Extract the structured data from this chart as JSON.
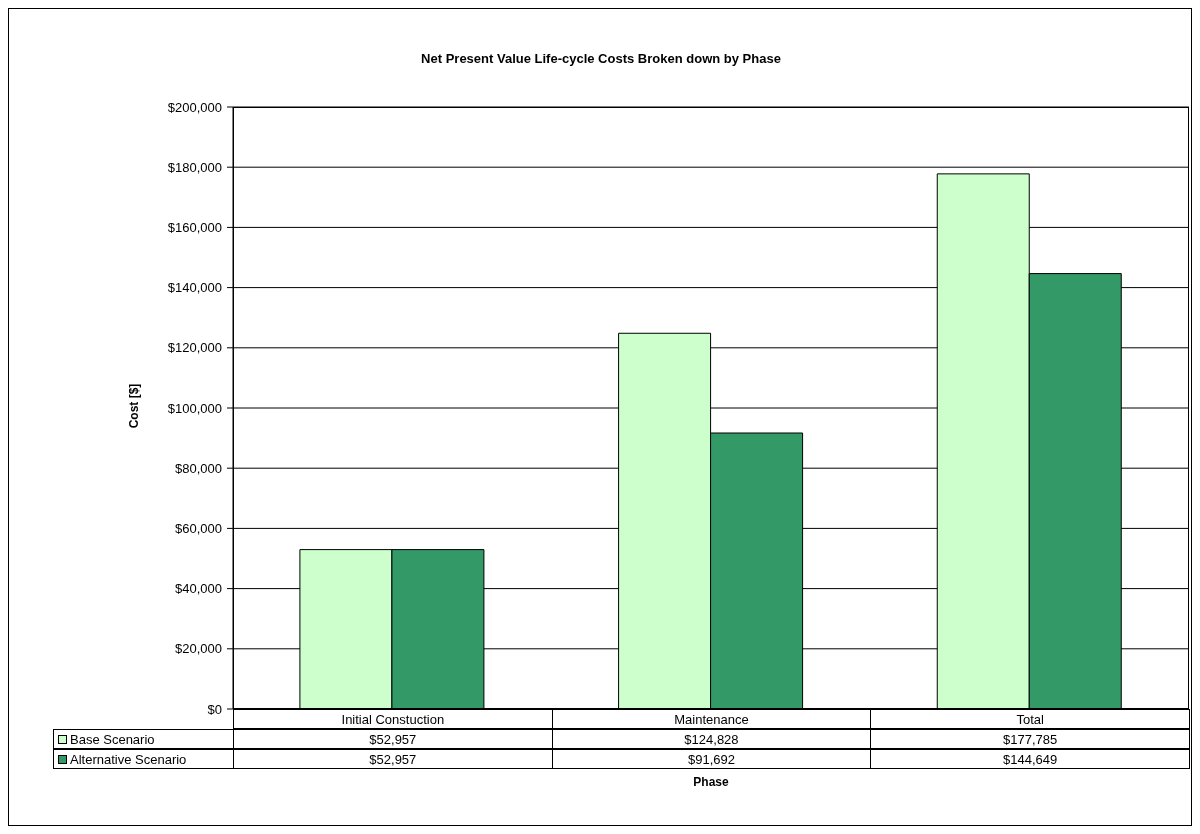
{
  "chart_data": {
    "type": "bar",
    "title": "Net Present Value Life-cycle Costs Broken down by Phase",
    "xlabel": "Phase",
    "ylabel": "Cost [$]",
    "categories": [
      "Initial Constuction",
      "Maintenance",
      "Total"
    ],
    "series": [
      {
        "name": "Base Scenario",
        "color": "#ccffcc",
        "values": [
          52957,
          124828,
          177785
        ],
        "value_labels": [
          "$52,957",
          "$124,828",
          "$177,785"
        ]
      },
      {
        "name": "Alternative Scenario",
        "color": "#339966",
        "values": [
          52957,
          91692,
          144649
        ],
        "value_labels": [
          "$52,957",
          "$91,692",
          "$144,649"
        ]
      }
    ],
    "ylim": [
      0,
      200000
    ],
    "yticks": [
      {
        "value": 0,
        "label": "$0"
      },
      {
        "value": 20000,
        "label": "$20,000"
      },
      {
        "value": 40000,
        "label": "$40,000"
      },
      {
        "value": 60000,
        "label": "$60,000"
      },
      {
        "value": 80000,
        "label": "$80,000"
      },
      {
        "value": 100000,
        "label": "$100,000"
      },
      {
        "value": 120000,
        "label": "$120,000"
      },
      {
        "value": 140000,
        "label": "$140,000"
      },
      {
        "value": 160000,
        "label": "$160,000"
      },
      {
        "value": 180000,
        "label": "$180,000"
      },
      {
        "value": 200000,
        "label": "$200,000"
      }
    ],
    "grid": "y",
    "legend": "bottom left"
  }
}
